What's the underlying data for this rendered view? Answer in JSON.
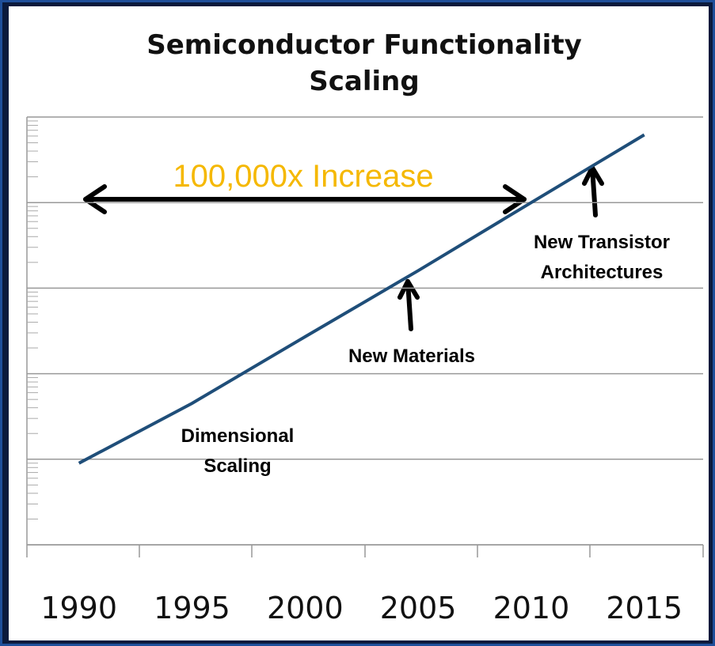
{
  "chart_data": {
    "type": "line",
    "title": "Semiconductor Functionality Scaling",
    "x": [
      1990,
      1995,
      2000,
      2005,
      2010,
      2015
    ],
    "values": [
      0.9,
      4.5,
      27,
      160,
      1000,
      6200
    ],
    "color": "#1f4e79",
    "xlim": [
      1987.7,
      2017.6
    ],
    "xticks": [
      1990,
      1995,
      2000,
      2005,
      2010,
      2015
    ],
    "ylim": [
      0.1,
      10000
    ],
    "yticks": [
      0.1,
      1,
      10,
      100,
      1000,
      10000
    ],
    "log_y": true,
    "grid": true,
    "annotations": [
      "100,000x Increase",
      "New Transistor Architectures",
      "New Materials",
      "Dimensional Scaling"
    ]
  }
}
